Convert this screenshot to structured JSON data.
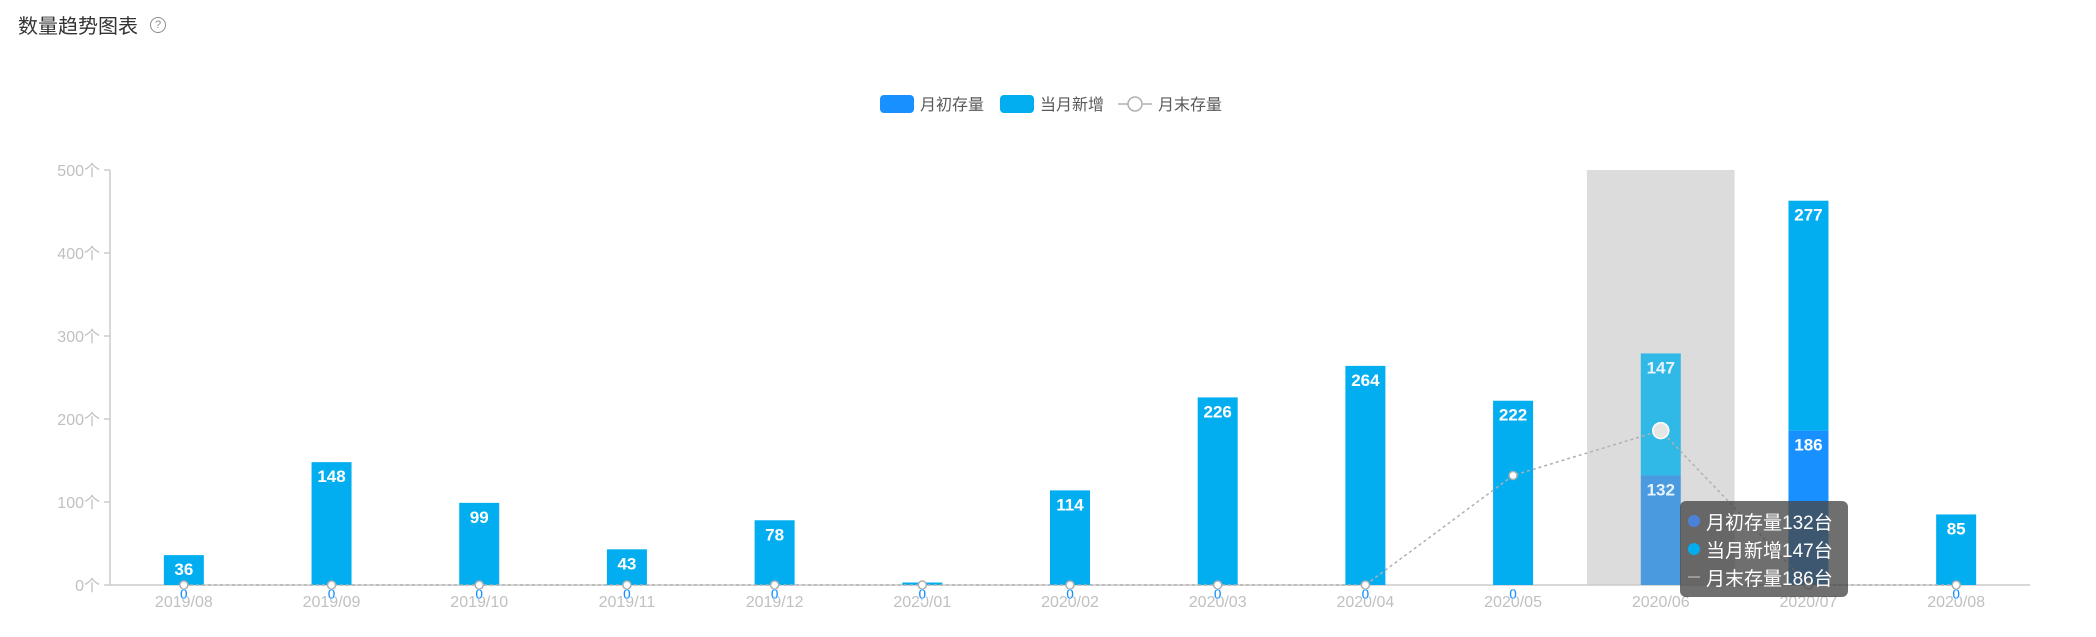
{
  "header": {
    "title": "数量趋势图表",
    "help_glyph": "?"
  },
  "colors": {
    "opening": "#1890ff",
    "added": "#03aef0",
    "closing_line": "#b0b0b0",
    "highlight": "#dcdcdc",
    "axis": "#cccccc",
    "axis_label": "#c0c0c0"
  },
  "chart_data": {
    "type": "bar",
    "title": "数量趋势图表",
    "xlabel": "",
    "ylabel": "",
    "ylim": [
      0,
      500
    ],
    "y_ticks": [
      "0个",
      "100个",
      "200个",
      "300个",
      "400个",
      "500个"
    ],
    "y_tick_values": [
      0,
      100,
      200,
      300,
      400,
      500
    ],
    "grid": false,
    "legend_placement": "top-center",
    "stacked": true,
    "categories": [
      "2019/08",
      "2019/09",
      "2019/10",
      "2019/11",
      "2019/12",
      "2020/01",
      "2020/02",
      "2020/03",
      "2020/04",
      "2020/05",
      "2020/06",
      "2020/07",
      "2020/08"
    ],
    "series": [
      {
        "name": "月初存量",
        "kind": "bar",
        "values": [
          0,
          0,
          0,
          0,
          0,
          0,
          0,
          0,
          0,
          0,
          132,
          186,
          0
        ],
        "labels": [
          "0",
          "0",
          "0",
          "0",
          "0",
          "0",
          "0",
          "0",
          "0",
          "0",
          "132",
          "186",
          "0"
        ]
      },
      {
        "name": "当月新增",
        "kind": "bar",
        "values": [
          36,
          148,
          99,
          43,
          78,
          3,
          114,
          226,
          264,
          222,
          147,
          277,
          85
        ],
        "labels": [
          "36",
          "148",
          "99",
          "43",
          "78",
          "3",
          "114",
          "226",
          "264",
          "222",
          "147",
          "277",
          "85"
        ]
      },
      {
        "name": "月末存量",
        "kind": "line",
        "values": [
          0,
          0,
          0,
          0,
          0,
          0,
          0,
          0,
          0,
          132,
          186,
          0,
          0
        ]
      }
    ],
    "highlighted_category": "2020/06"
  },
  "tooltip": {
    "rows": [
      {
        "text": "月初存量132台"
      },
      {
        "text": "当月新增147台"
      },
      {
        "text": "月末存量186台"
      }
    ]
  }
}
